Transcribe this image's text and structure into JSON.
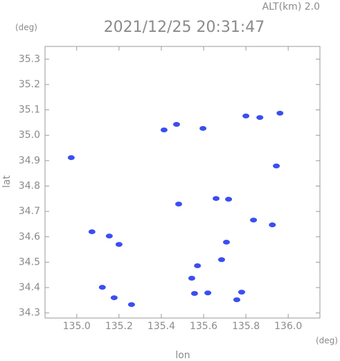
{
  "chart_data": {
    "type": "scatter",
    "title": "2021/12/25 20:31:47",
    "subtitle": "ALT(km) 2.0",
    "x_label": "lon",
    "y_label": "lat",
    "x_unit": "(deg)",
    "y_unit": "(deg)",
    "color": "#3b4ef0",
    "xlim": [
      134.85,
      136.15
    ],
    "ylim": [
      34.28,
      35.35
    ],
    "xticks": [
      {
        "value": 135,
        "label": "135.0"
      },
      135.2,
      135.4,
      135.6,
      135.8,
      {
        "value": 136,
        "label": "136.0"
      }
    ],
    "yticks": [
      34.3,
      34.4,
      34.5,
      34.6,
      34.7,
      34.8,
      34.9,
      {
        "value": 35,
        "label": "35.0"
      },
      35.1,
      35.2,
      35.3
    ],
    "x": [
      134.974,
      135.072,
      135.154,
      135.121,
      135.177,
      135.259,
      135.472,
      135.413,
      135.544,
      135.571,
      135.557,
      135.62,
      135.597,
      135.78,
      135.757,
      135.685,
      135.718,
      135.659,
      135.836,
      135.925,
      135.961,
      135.866,
      135.8,
      135.944,
      135.482,
      135.708,
      135.2
    ],
    "y": [
      34.912,
      34.62,
      34.603,
      34.401,
      34.36,
      34.333,
      35.043,
      35.021,
      34.437,
      34.486,
      34.377,
      34.379,
      35.027,
      34.382,
      34.352,
      34.51,
      34.748,
      34.751,
      34.666,
      34.647,
      35.087,
      35.07,
      35.076,
      34.879,
      34.729,
      34.579,
      34.57
    ]
  }
}
